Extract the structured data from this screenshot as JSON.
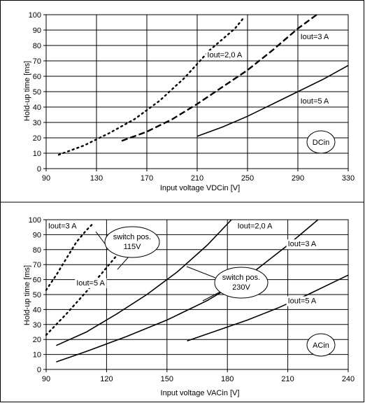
{
  "chart_data": [
    {
      "type": "line",
      "xlabel": "Input voltage VDCin [V]",
      "ylabel": "Hold-up time [ms]",
      "xlim": [
        90,
        330
      ],
      "ylim": [
        0,
        100
      ],
      "xticks": [
        90,
        130,
        170,
        210,
        250,
        290,
        330
      ],
      "yticks": [
        0,
        10,
        20,
        30,
        40,
        50,
        60,
        70,
        80,
        90,
        100
      ],
      "grid": true,
      "badge": "DCin",
      "series": [
        {
          "name": "Iout=2,0 A",
          "style": "dotted",
          "x": [
            100,
            120,
            140,
            160,
            180,
            200,
            220,
            240,
            247
          ],
          "y": [
            9,
            15,
            23,
            32,
            44,
            59,
            77,
            91,
            98
          ]
        },
        {
          "name": "Iout=3 A",
          "style": "dashed",
          "x": [
            150,
            170,
            190,
            210,
            230,
            250,
            270,
            290,
            305
          ],
          "y": [
            18,
            24,
            32,
            42,
            53,
            64,
            77,
            91,
            100
          ]
        },
        {
          "name": "Iout=5 A",
          "style": "solid",
          "x": [
            210,
            230,
            250,
            270,
            290,
            310,
            330
          ],
          "y": [
            21,
            27,
            34,
            42,
            50,
            58,
            67
          ]
        }
      ],
      "annotations": [
        {
          "text": "Iout=2,0 A",
          "x": 218,
          "y": 74
        },
        {
          "text": "Iout=3 A",
          "x": 292,
          "y": 86
        },
        {
          "text": "Iout=5 A",
          "x": 292,
          "y": 44
        }
      ]
    },
    {
      "type": "line",
      "xlabel": "Input voltage VACin [V]",
      "ylabel": "Hold-up time [ms]",
      "xlim": [
        90,
        240
      ],
      "ylim": [
        0,
        100
      ],
      "xticks": [
        90,
        120,
        150,
        180,
        210,
        240
      ],
      "yticks": [
        0,
        10,
        20,
        30,
        40,
        50,
        60,
        70,
        80,
        90,
        100
      ],
      "grid": true,
      "badge": "ACin",
      "series": [
        {
          "name": "switch pos. 115V, Iout=3 A",
          "style": "dotted",
          "x": [
            90,
            95,
            100,
            105,
            110,
            113
          ],
          "y": [
            53,
            63,
            74,
            85,
            93,
            97
          ]
        },
        {
          "name": "switch pos. 115V, Iout=5 A",
          "style": "dotted",
          "x": [
            90,
            100,
            110,
            120,
            130
          ],
          "y": [
            23,
            37,
            52,
            68,
            84
          ]
        },
        {
          "name": "switch pos. 230V, Iout=2,0 A",
          "style": "solid",
          "x": [
            95,
            110,
            125,
            140,
            155,
            170,
            182
          ],
          "y": [
            16,
            25,
            37,
            50,
            65,
            83,
            100
          ]
        },
        {
          "name": "switch pos. 230V, Iout=3 A",
          "style": "solid",
          "x": [
            95,
            110,
            130,
            150,
            170,
            190,
            210,
            225
          ],
          "y": [
            5,
            12,
            22,
            33,
            46,
            62,
            83,
            100
          ]
        },
        {
          "name": "switch pos. 230V, Iout=5 A",
          "style": "solid",
          "x": [
            160,
            175,
            190,
            205,
            220,
            240
          ],
          "y": [
            19,
            26,
            33,
            41,
            50,
            63
          ]
        }
      ],
      "annotations": [
        {
          "text": "Iout=3 A",
          "x": 91,
          "y": 96
        },
        {
          "text": "Iout=5 A",
          "x": 105,
          "y": 58
        },
        {
          "text": "Iout=2,0 A",
          "x": 185,
          "y": 96
        },
        {
          "text": "Iout=3 A",
          "x": 210,
          "y": 84
        },
        {
          "text": "Iout=5 A",
          "x": 210,
          "y": 46
        }
      ],
      "callouts": [
        {
          "line1": "switch pos.",
          "line2": "115V"
        },
        {
          "line1": "switch pos.",
          "line2": "230V"
        }
      ]
    }
  ]
}
